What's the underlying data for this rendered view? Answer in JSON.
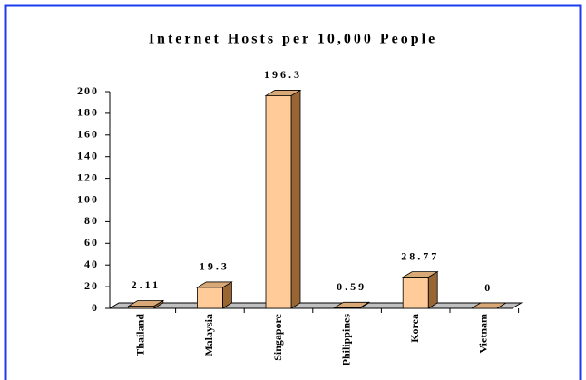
{
  "chart_data": {
    "type": "bar",
    "title": "Internet Hosts per 10,000 People",
    "categories": [
      "Thailand",
      "Malaysia",
      "Singapore",
      "Philippines",
      "Korea",
      "Vietnam"
    ],
    "values": [
      2.11,
      19.3,
      196.3,
      0.59,
      28.77,
      0
    ],
    "color": "#ffcc99",
    "ylim": [
      0,
      200
    ],
    "yticks": [
      0,
      20,
      40,
      60,
      80,
      100,
      120,
      140,
      160,
      180,
      200
    ]
  }
}
